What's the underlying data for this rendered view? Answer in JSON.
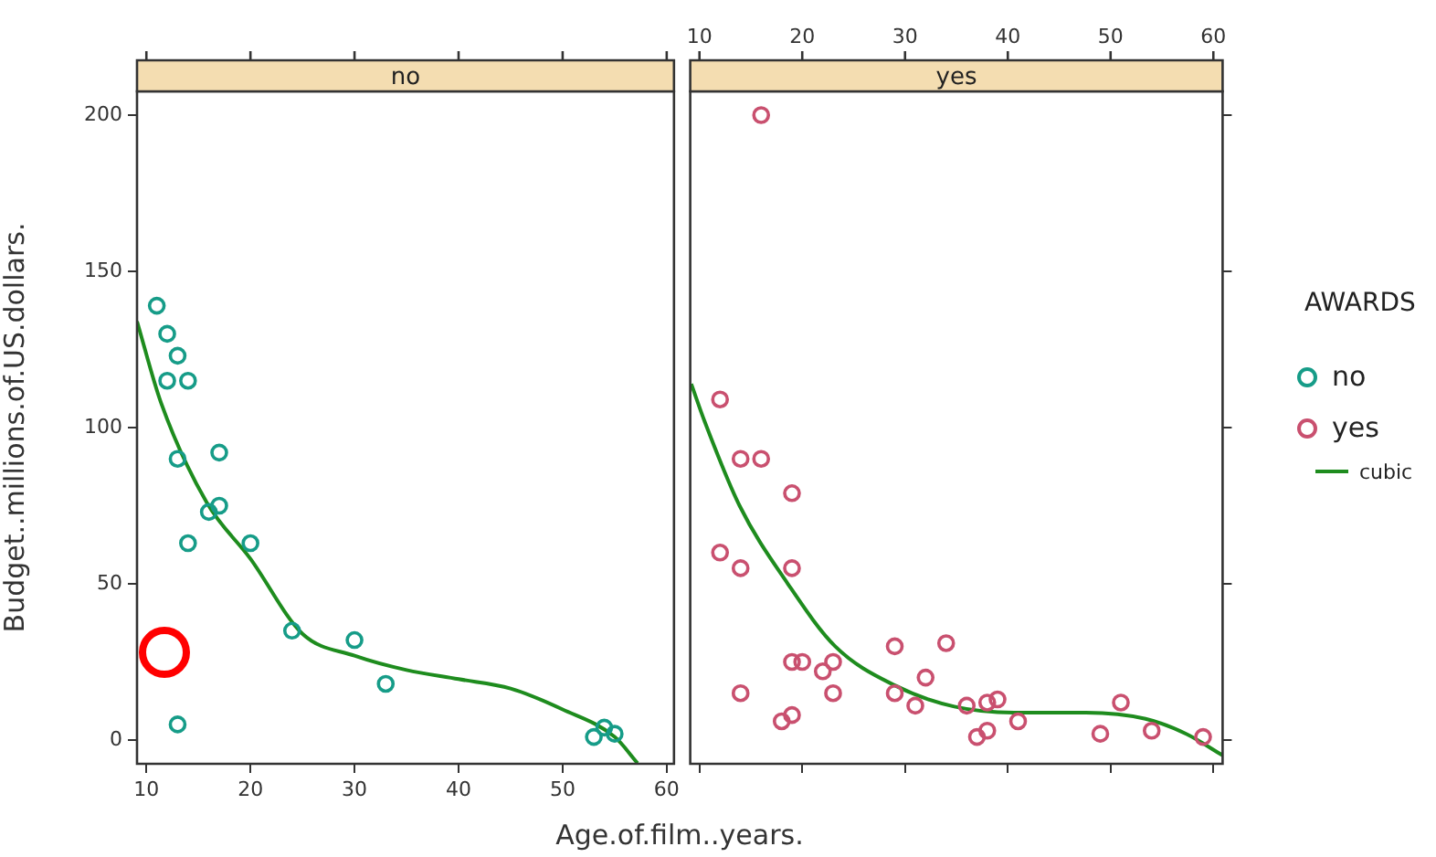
{
  "chart_data": [
    {
      "type": "scatter",
      "title": "no",
      "ylabel": "Budget..millions.of.US.dollars.",
      "xlabel": "Age.of.film..years.",
      "xlim": [
        9.1,
        60.7
      ],
      "xticks": [
        10,
        20,
        30,
        40,
        50,
        60
      ],
      "ylim": [
        -7.6,
        207.6
      ],
      "yticks": [
        0,
        50,
        100,
        150,
        200
      ],
      "legend": "right",
      "series": [
        {
          "name": "no",
          "marker": "circle",
          "color": "#169c88",
          "x": [
            11,
            12,
            13,
            12,
            14,
            13,
            17,
            16,
            17,
            14,
            20,
            24,
            30,
            33,
            13,
            53,
            54,
            55
          ],
          "values": [
            139,
            130,
            123,
            115,
            115,
            90,
            92,
            73,
            75,
            63,
            63,
            35,
            32,
            18,
            5,
            1,
            4,
            2
          ]
        },
        {
          "name": "cubic",
          "type": "line",
          "line_style": "solid",
          "color": "#1e8c1e",
          "x": [
            9.1,
            11.4,
            15.8,
            20,
            25,
            30,
            35,
            40,
            45,
            50,
            55,
            57.2
          ],
          "values": [
            134,
            108,
            76,
            58,
            34,
            27,
            22.4,
            19.5,
            16.5,
            9.8,
            1,
            -7.4
          ]
        }
      ]
    },
    {
      "type": "scatter",
      "title": "yes",
      "xlim": [
        9.1,
        60.9
      ],
      "xticks": [
        10,
        20,
        30,
        40,
        50,
        60
      ],
      "ylim": [
        -7.6,
        207.6
      ],
      "yticks": [
        0,
        50,
        100,
        150,
        200
      ],
      "tick_labels": "x",
      "legend": "right",
      "legend_title": "AWARDS",
      "series": [
        {
          "name": "yes",
          "marker": "circle",
          "color": "#c9506f",
          "x": [
            16,
            12,
            14,
            16,
            19,
            12,
            14,
            19,
            29,
            34,
            19,
            20,
            23,
            22,
            32,
            14,
            23,
            29,
            31,
            36,
            38,
            39,
            41,
            18,
            19,
            37,
            38,
            49,
            51,
            54,
            59
          ],
          "values": [
            200,
            109,
            90,
            90,
            79,
            60,
            55,
            55,
            30,
            31,
            25,
            25,
            25,
            22,
            20,
            15,
            15,
            15,
            11,
            11,
            12,
            13,
            6,
            6,
            8,
            1,
            3,
            2,
            12,
            3,
            1
          ]
        },
        {
          "type": "line",
          "line_style": "solid",
          "color": "#1e8c1e",
          "x": [
            9.2,
            10.5,
            13.9,
            18.6,
            23.2,
            29,
            34.8,
            40.6,
            47.6,
            53.4,
            57.4,
            60.9
          ],
          "values": [
            114,
            102,
            75,
            50,
            30,
            17.5,
            10.7,
            8.8,
            8.8,
            6.8,
            1.9,
            -4.9
          ]
        }
      ]
    }
  ]
}
